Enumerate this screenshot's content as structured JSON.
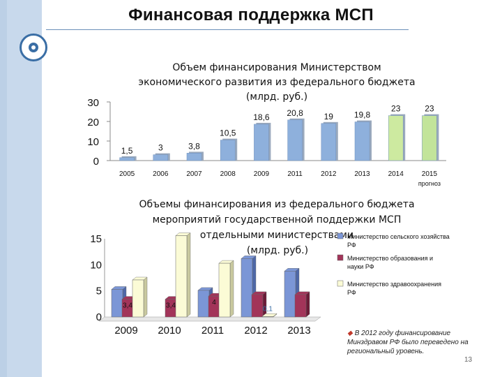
{
  "header": {
    "title": "Финансовая поддержка МСП"
  },
  "chart_data": [
    {
      "type": "bar",
      "title": "Объем финансирования Министерством экономического развития из федерального бюджета (млрд. руб.)",
      "title_lines": [
        "Объем финансирования Министерством",
        "экономического развития из федерального бюджета",
        "(млрд. руб.)"
      ],
      "categories": [
        "2005",
        "2006",
        "2007",
        "2008",
        "2009",
        "2011",
        "2012",
        "2013",
        "2014",
        "2015"
      ],
      "category_sublabels": [
        "",
        "",
        "",
        "",
        "",
        "",
        "",
        "",
        "",
        "прогноз"
      ],
      "values": [
        1.5,
        3,
        3.8,
        10.5,
        18.6,
        20.8,
        19,
        19.8,
        23,
        23
      ],
      "data_labels": [
        "1,5",
        "3",
        "3,8",
        "10,5",
        "18,6",
        "20,8",
        "19",
        "19,8",
        "23",
        "23"
      ],
      "ylim": [
        0,
        30
      ],
      "yticks": [
        "0",
        "10",
        "20",
        "30"
      ],
      "colors": {
        "bar": "#8eb0dc",
        "highlight": "#cdeaa0",
        "forecast": "#c2e49a"
      }
    },
    {
      "type": "bar",
      "title": "Объемы финансирования из федерального бюджета мероприятий государственной поддержки МСП отдельными министерствами (млрд. руб.)",
      "title_lines": [
        "Объемы финансирования из федерального бюджета",
        "мероприятий государственной поддержки МСП",
        "отдельными министерствами",
        "(млрд. руб.)"
      ],
      "categories": [
        "2009",
        "2010",
        "2011",
        "2012",
        "2013"
      ],
      "series": [
        {
          "name": "Министерство сельского хозяйства РФ",
          "values": [
            5.3,
            0,
            5.1,
            11.2,
            8.8
          ],
          "color": "#7b96d6"
        },
        {
          "name": "Министерство образования и науки РФ",
          "values": [
            3.4,
            3.4,
            4,
            4.3,
            4.3
          ],
          "color": "#a23459"
        },
        {
          "name": "Министерство здравоохранения РФ",
          "values": [
            7.1,
            15.6,
            10.3,
            0.1,
            0
          ],
          "color": "#fbfbd6"
        }
      ],
      "data_labels": [
        {
          "category": "2009",
          "series": 1,
          "text": "3,4"
        },
        {
          "category": "2010",
          "series": 1,
          "text": "3,4"
        },
        {
          "category": "2011",
          "series": 1,
          "text": "4"
        },
        {
          "category": "2012",
          "series": 2,
          "text": "0,1"
        }
      ],
      "ylim": [
        0,
        15
      ],
      "yticks": [
        "0",
        "5",
        "10",
        "15"
      ],
      "legend": "right"
    }
  ],
  "footnote": "В 2012 году финансирование Минздравом РФ было переведено на региональный уровень.",
  "page_number": "13"
}
